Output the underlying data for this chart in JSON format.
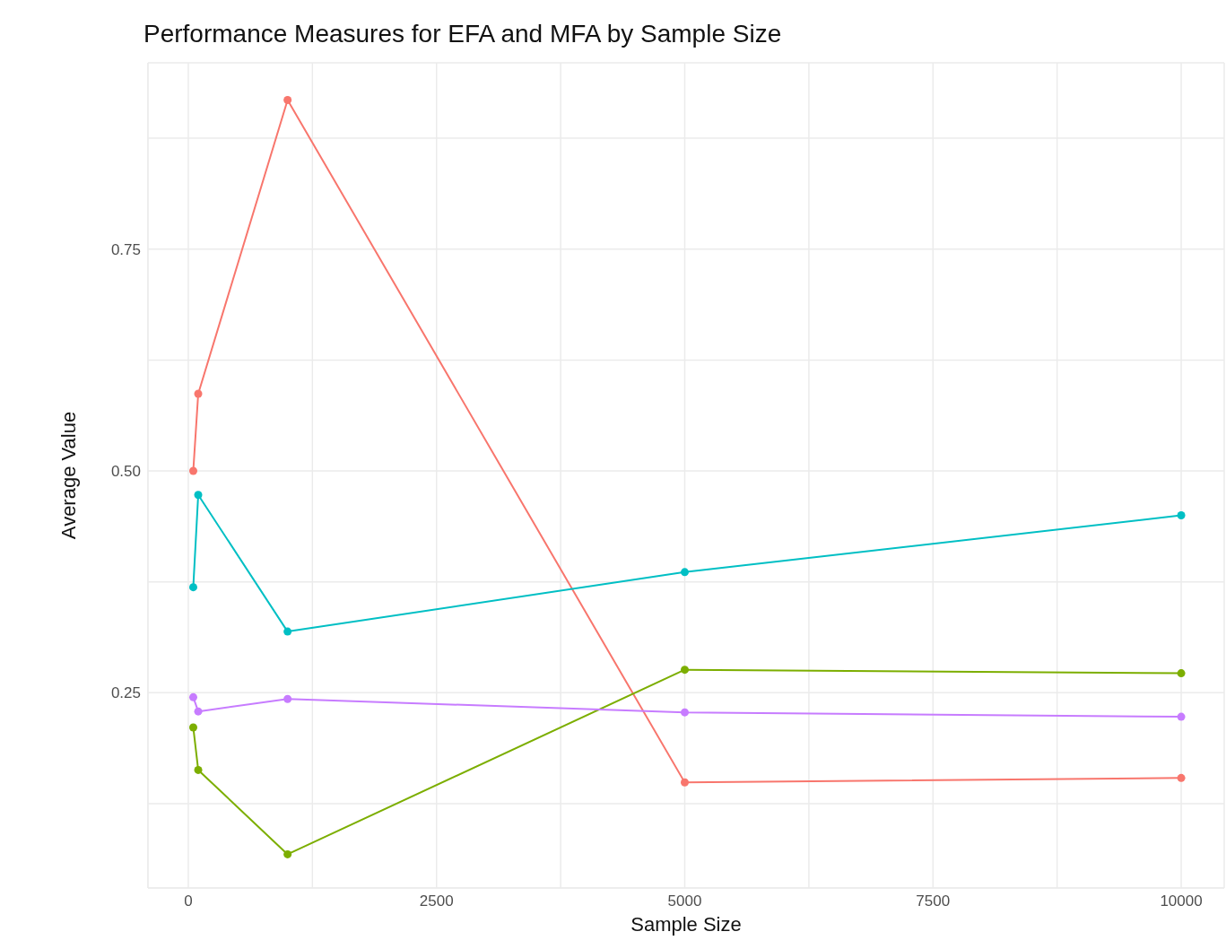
{
  "chart_data": {
    "type": "line",
    "title": "Performance Measures for EFA and MFA by Sample Size",
    "xlabel": "Sample Size",
    "ylabel": "Average Value",
    "x": [
      50,
      100,
      1000,
      5000,
      10000
    ],
    "series": [
      {
        "color": "#f8766d",
        "values": [
          0.5,
          0.587,
          0.918,
          0.149,
          0.154
        ]
      },
      {
        "color": "#7cae00",
        "values": [
          0.211,
          0.163,
          0.068,
          0.276,
          0.272
        ]
      },
      {
        "color": "#00bfc4",
        "values": [
          0.369,
          0.473,
          0.319,
          0.386,
          0.45
        ]
      },
      {
        "color": "#c77cff",
        "values": [
          0.245,
          0.229,
          0.243,
          0.228,
          0.223
        ]
      }
    ],
    "xlim": [
      -406,
      10433
    ],
    "xticks": [
      0,
      {
        "value": 1250,
        "label": null
      },
      2500,
      {
        "value": 3750,
        "label": null
      },
      5000,
      {
        "value": 6250,
        "label": null
      },
      7500,
      {
        "value": 8750,
        "label": null
      },
      10000
    ],
    "ylim": [
      0.03,
      0.96
    ],
    "yticks": [
      {
        "value": 0.125,
        "label": null
      },
      {
        "value": 0.25,
        "label": "0.25"
      },
      {
        "value": 0.375,
        "label": null
      },
      {
        "value": 0.5,
        "label": "0.50"
      },
      {
        "value": 0.625,
        "label": null
      },
      {
        "value": 0.75,
        "label": "0.75"
      },
      {
        "value": 0.875,
        "label": null
      }
    ],
    "grid": true,
    "marker": "circle",
    "line_style": "solid"
  }
}
